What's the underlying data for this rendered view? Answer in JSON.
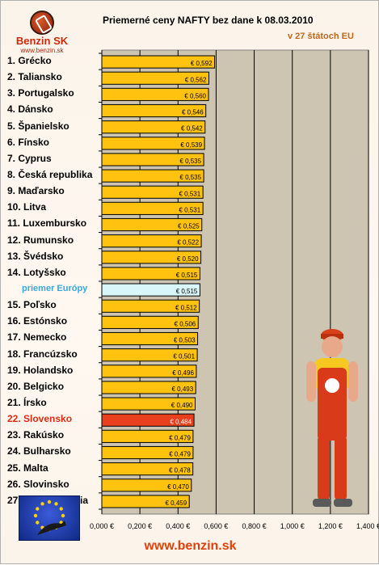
{
  "brand": {
    "name": "Benzin SK",
    "url": "www.benzin.sk"
  },
  "title": "Priemerné ceny NAFTY bez dane k 08.03.2010",
  "subtitle": "v 27 štátoch EU",
  "footer": "www.benzin.sk",
  "colors": {
    "bar": "#ffc20e",
    "average_bar": "#d9f7fa",
    "highlight_bar": "#e8401c",
    "plot_bg": "#cdc5b2",
    "grid": "#000000"
  },
  "chart_data": {
    "type": "bar",
    "orientation": "horizontal",
    "categories": [
      "1. Grécko",
      "2. Taliansko",
      "3. Portugalsko",
      "4. Dánsko",
      "5. Španielsko",
      "6. Fínsko",
      "7. Cyprus",
      "8. Česká republika",
      "9. Maďarsko",
      "10. Litva",
      "11. Luxembursko",
      "12. Rumunsko",
      "13. Švédsko",
      "14. Lotyšsko",
      "priemer Európy",
      "15. Poľsko",
      "16. Estónsko",
      "17. Nemecko",
      "18. Francúzsko",
      "19. Holandsko",
      "20. Belgicko",
      "21. Írsko",
      "22. Slovensko",
      "23. Rakúsko",
      "24. Bulharsko",
      "25. Malta",
      "26. Slovinsko",
      "27. Veľká Británia"
    ],
    "values": [
      0.592,
      0.562,
      0.56,
      0.546,
      0.542,
      0.539,
      0.535,
      0.535,
      0.531,
      0.531,
      0.525,
      0.522,
      0.52,
      0.515,
      0.515,
      0.512,
      0.506,
      0.503,
      0.501,
      0.496,
      0.493,
      0.49,
      0.484,
      0.479,
      0.479,
      0.478,
      0.47,
      0.459
    ],
    "value_labels": [
      "€ 0,592",
      "€ 0,562",
      "€ 0,560",
      "€ 0,546",
      "€ 0,542",
      "€ 0,539",
      "€ 0,535",
      "€ 0,535",
      "€ 0,531",
      "€ 0,531",
      "€ 0,525",
      "€ 0,522",
      "€ 0,520",
      "€ 0,515",
      "€ 0,515",
      "€ 0,512",
      "€ 0,506",
      "€ 0,503",
      "€ 0,501",
      "€ 0,496",
      "€ 0,493",
      "€ 0,490",
      "€ 0,484",
      "€ 0,479",
      "€ 0,479",
      "€ 0,478",
      "€ 0,470",
      "€ 0,459"
    ],
    "average_index": 14,
    "highlight_index": 22,
    "xlim": [
      0,
      1.4
    ],
    "x_ticks": [
      0,
      0.2,
      0.4,
      0.6,
      0.8,
      1.0,
      1.2,
      1.4
    ],
    "x_tick_labels": [
      "0,000 €",
      "0,200 €",
      "0,400 €",
      "0,600 €",
      "0,800 €",
      "1,000 €",
      "1,200 €",
      "1,400 €"
    ],
    "grid": true
  }
}
